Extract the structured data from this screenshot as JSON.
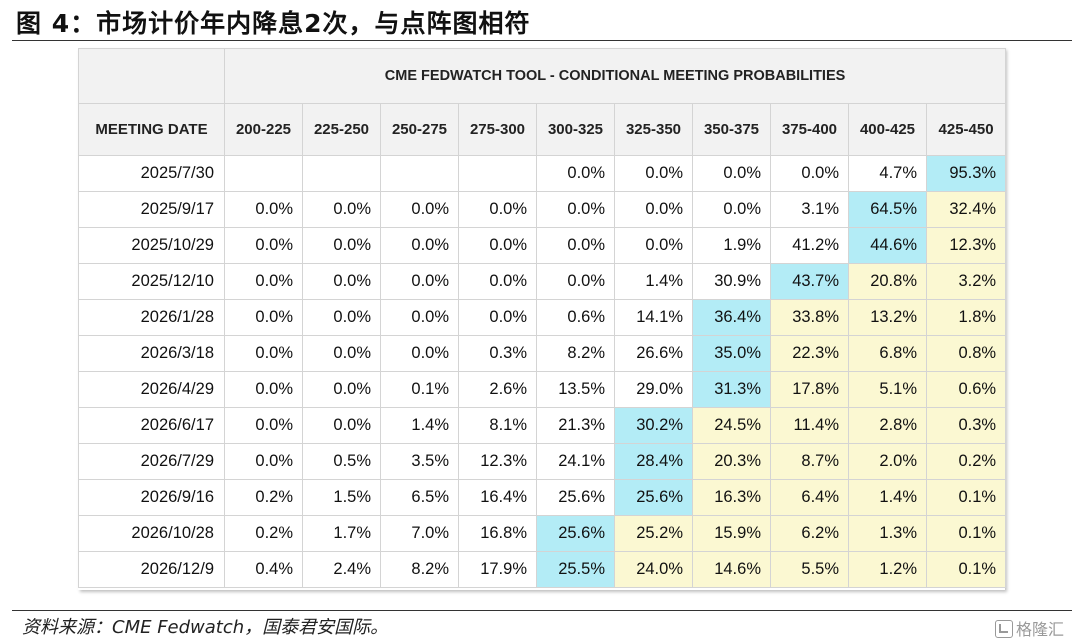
{
  "figure_title": "图 4：市场计价年内降息2次，与点阵图相符",
  "table": {
    "banner": "CME FEDWATCH TOOL - CONDITIONAL MEETING PROBABILITIES",
    "date_header": "MEETING DATE",
    "columns": [
      "200-225",
      "225-250",
      "250-275",
      "275-300",
      "300-325",
      "325-350",
      "350-375",
      "375-400",
      "400-425",
      "425-450"
    ],
    "rows": [
      {
        "date": "2025/7/30",
        "values": [
          "",
          "",
          "",
          "",
          "0.0%",
          "0.0%",
          "0.0%",
          "0.0%",
          "4.7%",
          "95.3%"
        ],
        "max_index": 9,
        "shaded_from": 10
      },
      {
        "date": "2025/9/17",
        "values": [
          "0.0%",
          "0.0%",
          "0.0%",
          "0.0%",
          "0.0%",
          "0.0%",
          "0.0%",
          "3.1%",
          "64.5%",
          "32.4%"
        ],
        "max_index": 8,
        "shaded_from": 9
      },
      {
        "date": "2025/10/29",
        "values": [
          "0.0%",
          "0.0%",
          "0.0%",
          "0.0%",
          "0.0%",
          "0.0%",
          "1.9%",
          "41.2%",
          "44.6%",
          "12.3%"
        ],
        "max_index": 8,
        "shaded_from": 9
      },
      {
        "date": "2025/12/10",
        "values": [
          "0.0%",
          "0.0%",
          "0.0%",
          "0.0%",
          "0.0%",
          "1.4%",
          "30.9%",
          "43.7%",
          "20.8%",
          "3.2%"
        ],
        "max_index": 7,
        "shaded_from": 8
      },
      {
        "date": "2026/1/28",
        "values": [
          "0.0%",
          "0.0%",
          "0.0%",
          "0.0%",
          "0.6%",
          "14.1%",
          "36.4%",
          "33.8%",
          "13.2%",
          "1.8%"
        ],
        "max_index": 6,
        "shaded_from": 7
      },
      {
        "date": "2026/3/18",
        "values": [
          "0.0%",
          "0.0%",
          "0.0%",
          "0.3%",
          "8.2%",
          "26.6%",
          "35.0%",
          "22.3%",
          "6.8%",
          "0.8%"
        ],
        "max_index": 6,
        "shaded_from": 7
      },
      {
        "date": "2026/4/29",
        "values": [
          "0.0%",
          "0.0%",
          "0.1%",
          "2.6%",
          "13.5%",
          "29.0%",
          "31.3%",
          "17.8%",
          "5.1%",
          "0.6%"
        ],
        "max_index": 6,
        "shaded_from": 7
      },
      {
        "date": "2026/6/17",
        "values": [
          "0.0%",
          "0.0%",
          "1.4%",
          "8.1%",
          "21.3%",
          "30.2%",
          "24.5%",
          "11.4%",
          "2.8%",
          "0.3%"
        ],
        "max_index": 5,
        "shaded_from": 6
      },
      {
        "date": "2026/7/29",
        "values": [
          "0.0%",
          "0.5%",
          "3.5%",
          "12.3%",
          "24.1%",
          "28.4%",
          "20.3%",
          "8.7%",
          "2.0%",
          "0.2%"
        ],
        "max_index": 5,
        "shaded_from": 6
      },
      {
        "date": "2026/9/16",
        "values": [
          "0.2%",
          "1.5%",
          "6.5%",
          "16.4%",
          "25.6%",
          "25.6%",
          "16.3%",
          "6.4%",
          "1.4%",
          "0.1%"
        ],
        "max_index": 5,
        "shaded_from": 6
      },
      {
        "date": "2026/10/28",
        "values": [
          "0.2%",
          "1.7%",
          "7.0%",
          "16.8%",
          "25.6%",
          "25.2%",
          "15.9%",
          "6.2%",
          "1.3%",
          "0.1%"
        ],
        "max_index": 4,
        "shaded_from": 5
      },
      {
        "date": "2026/12/9",
        "values": [
          "0.4%",
          "2.4%",
          "8.2%",
          "17.9%",
          "25.5%",
          "24.0%",
          "14.6%",
          "5.5%",
          "1.2%",
          "0.1%"
        ],
        "max_index": 4,
        "shaded_from": 5
      }
    ],
    "colors": {
      "max_cell": "#b3ecf6",
      "upper_cell": "#fbf8d2",
      "header": "#f2f2f2"
    }
  },
  "source_note": "资料来源：CME Fedwatch，国泰君安国际。",
  "watermark": "格隆汇"
}
